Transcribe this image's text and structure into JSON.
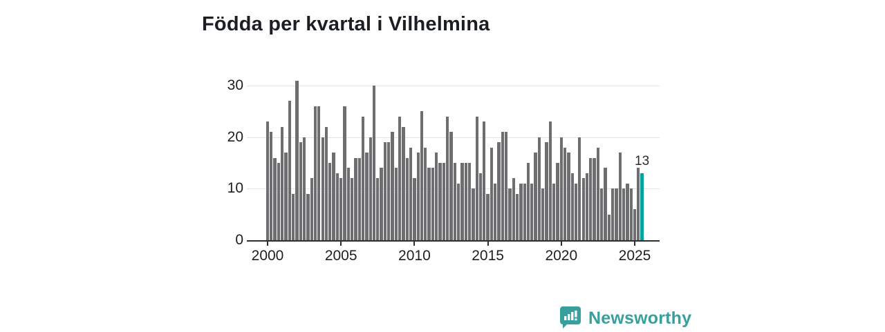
{
  "title": "Födda per kvartal i Vilhelmina",
  "annotation": {
    "last_value_label": "13"
  },
  "logo": {
    "text": "Newsworthy"
  },
  "colors": {
    "bar_gray": "#6e6e71",
    "bar_highlight_teal": "#00a49c",
    "logo_teal": "#38a09c",
    "axis": "#2e2e2e",
    "gridline": "#e3e3e3",
    "title_text": "#1b1f24",
    "tick_text": "#1f1f1f"
  },
  "chart_data": {
    "type": "bar",
    "title": "Födda per kvartal i Vilhelmina",
    "period": "quarterly",
    "start": "2000 Q1",
    "end": "2025 Q3",
    "xlabel": "",
    "ylabel": "",
    "ylim": [
      0,
      32
    ],
    "grid": "horizontal",
    "y_ticks": [
      0,
      10,
      20,
      30
    ],
    "x_tick_years": [
      2000,
      2005,
      2010,
      2015,
      2020,
      2025
    ],
    "values": [
      23,
      21,
      16,
      15,
      22,
      17,
      27,
      9,
      31,
      19,
      20,
      9,
      12,
      26,
      26,
      20,
      22,
      15,
      17,
      13,
      12,
      26,
      14,
      12,
      16,
      16,
      24,
      17,
      20,
      30,
      12,
      14,
      19,
      19,
      21,
      14,
      24,
      22,
      16,
      18,
      12,
      17,
      25,
      18,
      14,
      14,
      17,
      15,
      15,
      24,
      21,
      15,
      11,
      15,
      15,
      15,
      10,
      24,
      13,
      23,
      9,
      18,
      11,
      19,
      21,
      21,
      10,
      12,
      9,
      11,
      11,
      15,
      11,
      17,
      20,
      10,
      19,
      23,
      11,
      15,
      20,
      18,
      17,
      13,
      11,
      20,
      12,
      13,
      16,
      16,
      18,
      10,
      14,
      5,
      10,
      10,
      17,
      10,
      11,
      10,
      6,
      14,
      13
    ],
    "highlight_last_bar": true,
    "last_bar_label": "13",
    "legend": "none"
  }
}
